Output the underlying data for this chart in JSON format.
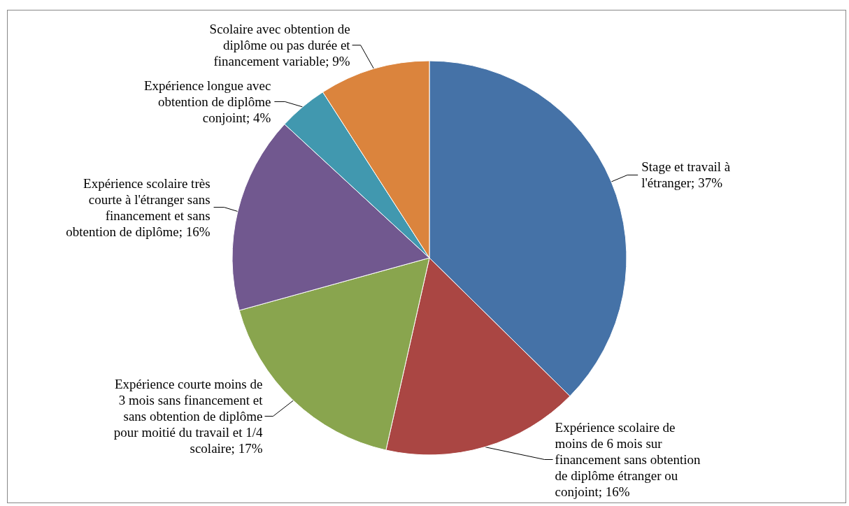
{
  "chart_data": {
    "type": "pie",
    "categories": [
      "Stage et travail à l'étranger",
      "Expérience scolaire de moins de 6 mois sur financement sans obtention de diplôme étranger ou conjoint",
      "Expérience courte moins de 3 mois sans financement et sans obtention de diplôme pour moitié du travail et 1/4 scolaire",
      "Expérience scolaire très courte à l'étranger sans financement et sans obtention de diplôme",
      "Expérience longue avec obtention de diplôme conjoint",
      "Scolaire avec obtention de diplôme ou pas durée et financement variable"
    ],
    "values": [
      37,
      16,
      17,
      16,
      4,
      9
    ],
    "value_labels": [
      "37%",
      "16%",
      "17%",
      "16%",
      "4%",
      "9%"
    ],
    "colors": [
      "#4572a7",
      "#aa4643",
      "#89a54e",
      "#71588f",
      "#4198af",
      "#db843d"
    ],
    "legend": false
  }
}
